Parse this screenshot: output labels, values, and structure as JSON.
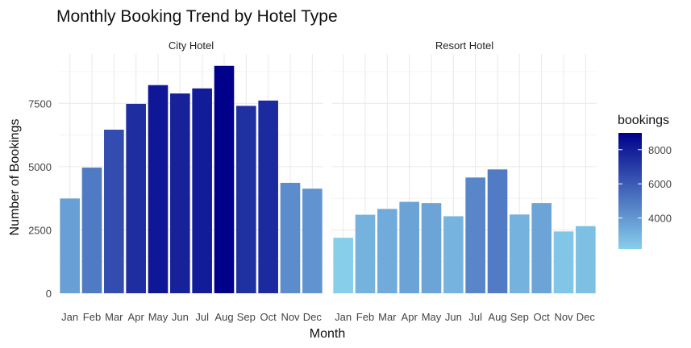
{
  "chart_data": {
    "type": "bar",
    "title": "Monthly Booking Trend by Hotel Type",
    "xlabel": "Month",
    "ylabel": "Number of Bookings",
    "categories": [
      "Jan",
      "Feb",
      "Mar",
      "Apr",
      "May",
      "Jun",
      "Jul",
      "Aug",
      "Sep",
      "Oct",
      "Nov",
      "Dec"
    ],
    "ylim": [
      0,
      9450
    ],
    "yticks": [
      0,
      2500,
      5000,
      7500
    ],
    "grid": true,
    "facets": [
      {
        "name": "City Hotel",
        "values": [
          3740,
          4960,
          6460,
          7480,
          8220,
          7890,
          8090,
          8980,
          7400,
          7610,
          4360,
          4130
        ]
      },
      {
        "name": "Resort Hotel",
        "values": [
          2190,
          3100,
          3330,
          3610,
          3560,
          3040,
          4570,
          4890,
          3110,
          3560,
          2440,
          2650
        ]
      }
    ],
    "legend": {
      "title": "bookings",
      "placement": "right",
      "ticks": [
        4000,
        6000,
        8000
      ],
      "range": [
        2190,
        8980
      ],
      "color_low": "#87ceeb",
      "color_high": "#00008b"
    }
  }
}
